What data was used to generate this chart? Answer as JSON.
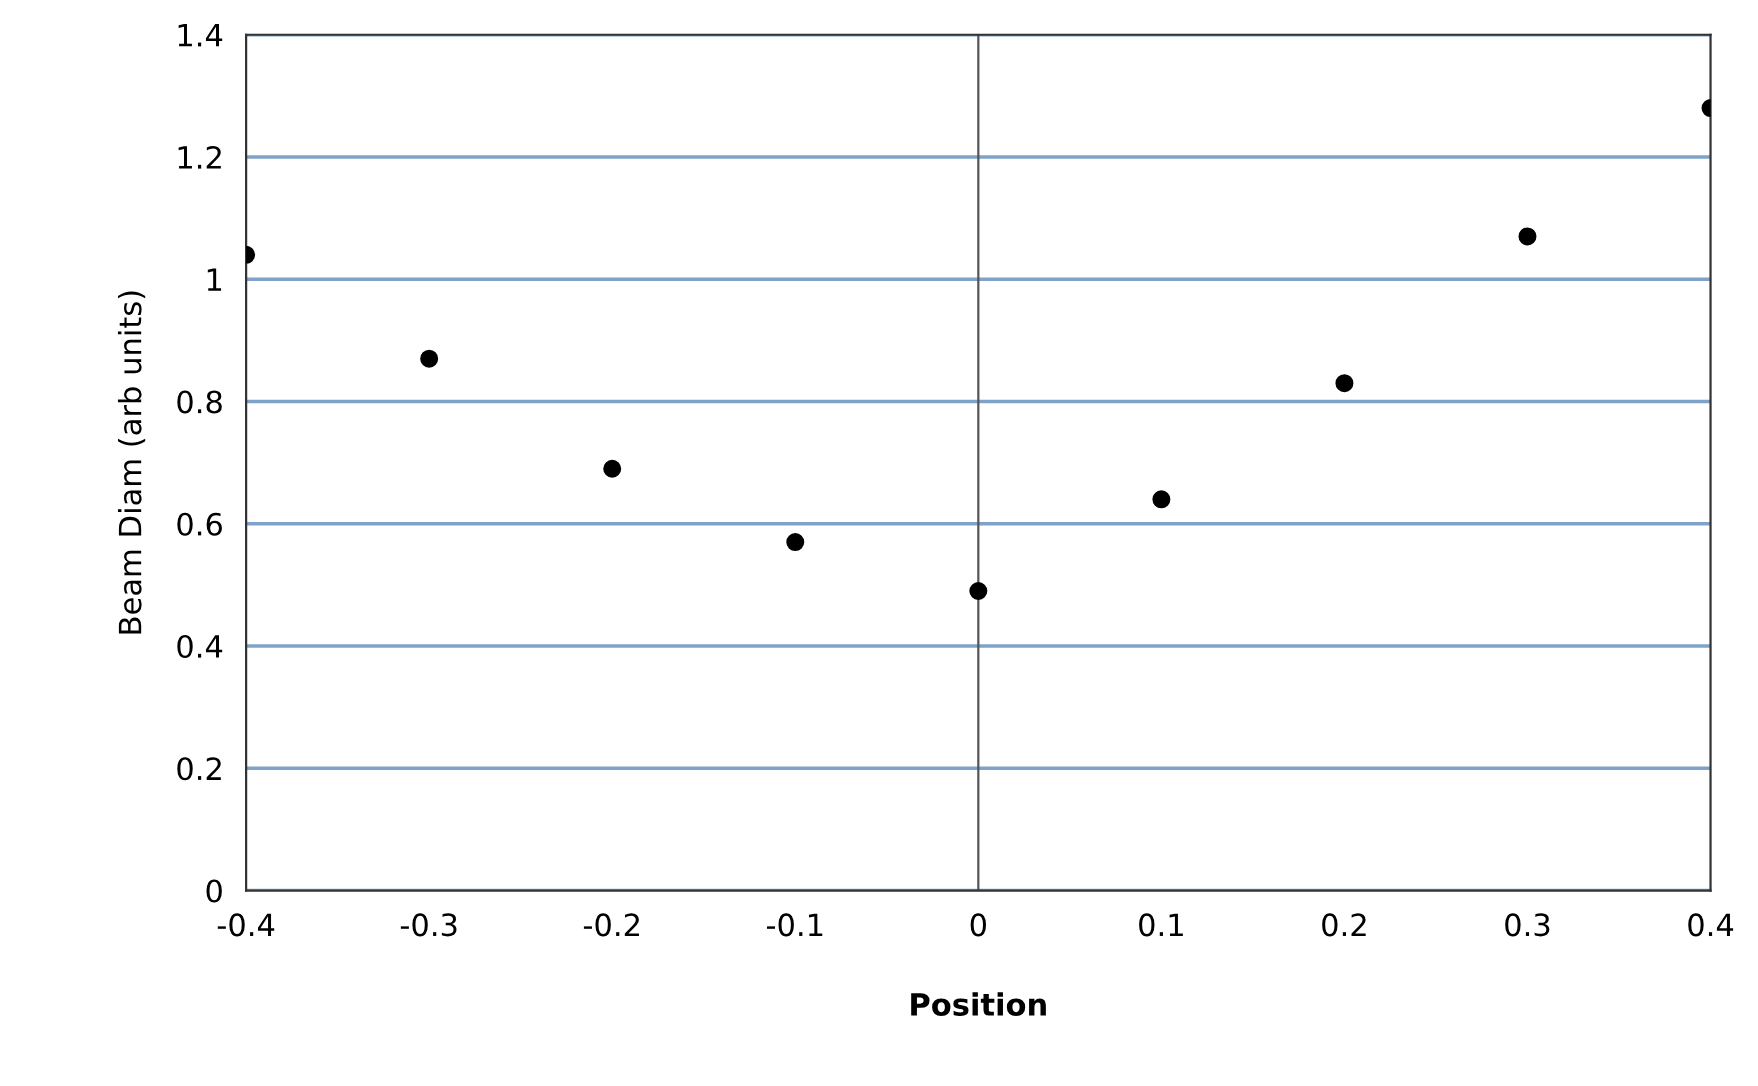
{
  "chart_data": {
    "type": "scatter",
    "xlabel": "Position",
    "ylabel": "Beam Diam (arb units)",
    "x": [
      -0.4,
      -0.3,
      -0.2,
      -0.1,
      0,
      0.1,
      0.2,
      0.3,
      0.4
    ],
    "series": [
      {
        "color": "#000000",
        "values": [
          1.04,
          0.87,
          0.69,
          0.57,
          0.49,
          0.64,
          0.83,
          1.07,
          1.28
        ]
      }
    ],
    "xlim": [
      -0.4,
      0.4
    ],
    "xticks": [
      -0.4,
      -0.3,
      -0.2,
      -0.1,
      0,
      0.1,
      0.2,
      0.3,
      0.4
    ],
    "ylim": [
      0,
      1.4
    ],
    "yticks": [
      0,
      0.2,
      0.4,
      0.6,
      0.8,
      1,
      1.2,
      1.4
    ],
    "grid": "y",
    "marker": "circle",
    "legend": false,
    "ref_lines": [
      {
        "axis": "x",
        "value": 0,
        "color": "#555555"
      }
    ]
  }
}
